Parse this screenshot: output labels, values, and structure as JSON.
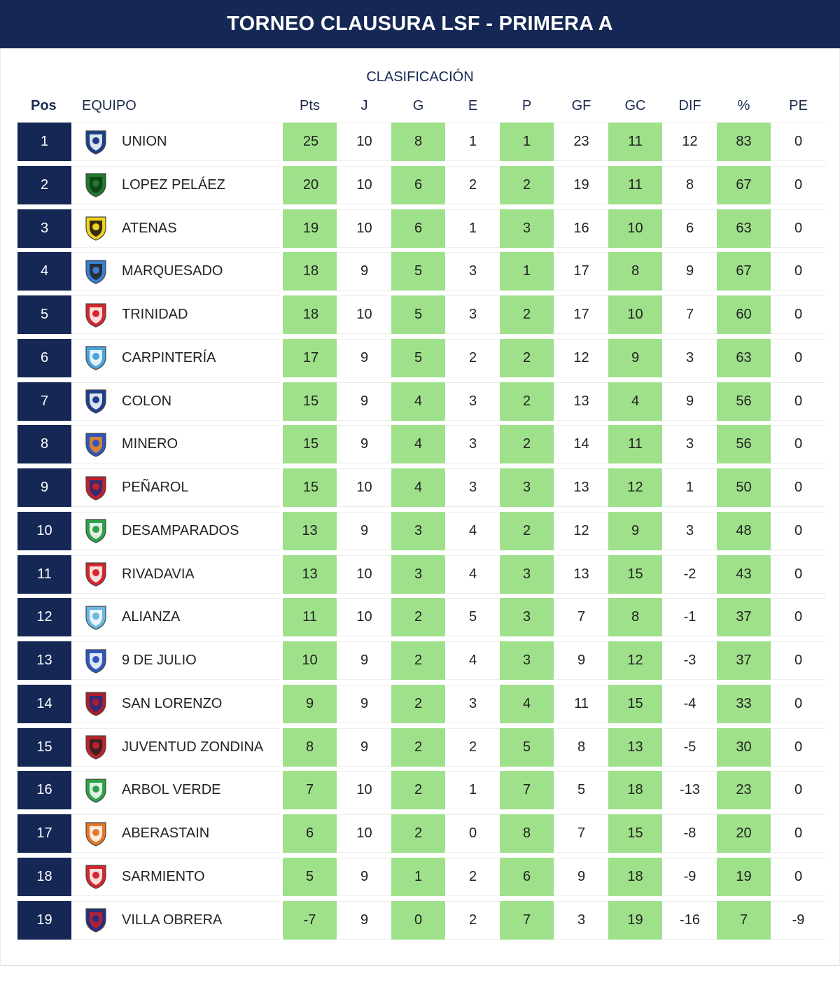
{
  "title": "TORNEO CLAUSURA LSF - PRIMERA A",
  "subtitle": "CLASIFICACIÓN",
  "headers": {
    "pos": "Pos",
    "team": "EQUIPO",
    "pts": "Pts",
    "j": "J",
    "g": "G",
    "e": "E",
    "p": "P",
    "gf": "GF",
    "gc": "GC",
    "dif": "DIF",
    "pct": "%",
    "pe": "PE"
  },
  "colors": {
    "navy": "#152755",
    "green_cell": "#9fe18a",
    "zone_marker": "#4aad52"
  },
  "rows": [
    {
      "pos": "1",
      "team": "UNION",
      "pts": "25",
      "j": "10",
      "g": "8",
      "e": "1",
      "p": "1",
      "gf": "23",
      "gc": "11",
      "dif": "12",
      "pct": "83",
      "pe": "0",
      "icon": "union-crest-icon",
      "c1": "#1b3f8f",
      "c2": "#ffffff"
    },
    {
      "pos": "2",
      "team": "LOPEZ PELÁEZ",
      "pts": "20",
      "j": "10",
      "g": "6",
      "e": "2",
      "p": "2",
      "gf": "19",
      "gc": "11",
      "dif": "8",
      "pct": "67",
      "pe": "0",
      "icon": "lopez-pelaez-crest-icon",
      "c1": "#1d7a2e",
      "c2": "#0c3d14"
    },
    {
      "pos": "3",
      "team": "ATENAS",
      "pts": "19",
      "j": "10",
      "g": "6",
      "e": "1",
      "p": "3",
      "gf": "16",
      "gc": "10",
      "dif": "6",
      "pct": "63",
      "pe": "0",
      "icon": "atenas-crest-icon",
      "c1": "#f2d21b",
      "c2": "#111111"
    },
    {
      "pos": "4",
      "team": "MARQUESADO",
      "pts": "18",
      "j": "9",
      "g": "5",
      "e": "3",
      "p": "1",
      "gf": "17",
      "gc": "8",
      "dif": "9",
      "pct": "67",
      "pe": "0",
      "icon": "marquesado-crest-icon",
      "c1": "#3a7fd0",
      "c2": "#222222"
    },
    {
      "pos": "5",
      "team": "TRINIDAD",
      "pts": "18",
      "j": "10",
      "g": "5",
      "e": "3",
      "p": "2",
      "gf": "17",
      "gc": "10",
      "dif": "7",
      "pct": "60",
      "pe": "0",
      "icon": "trinidad-crest-icon",
      "c1": "#d8262a",
      "c2": "#ffffff"
    },
    {
      "pos": "6",
      "team": "CARPINTERÍA",
      "pts": "17",
      "j": "9",
      "g": "5",
      "e": "2",
      "p": "2",
      "gf": "12",
      "gc": "9",
      "dif": "3",
      "pct": "63",
      "pe": "0",
      "icon": "carpinteria-crest-icon",
      "c1": "#4aa3df",
      "c2": "#ffffff"
    },
    {
      "pos": "7",
      "team": "COLON",
      "pts": "15",
      "j": "9",
      "g": "4",
      "e": "3",
      "p": "2",
      "gf": "13",
      "gc": "4",
      "dif": "9",
      "pct": "56",
      "pe": "0",
      "icon": "colon-crest-icon",
      "c1": "#1b3f8f",
      "c2": "#ffffff"
    },
    {
      "pos": "8",
      "team": "MINERO",
      "pts": "15",
      "j": "9",
      "g": "4",
      "e": "3",
      "p": "2",
      "gf": "14",
      "gc": "11",
      "dif": "3",
      "pct": "56",
      "pe": "0",
      "icon": "minero-crest-icon",
      "c1": "#2f56c0",
      "c2": "#f28a1c"
    },
    {
      "pos": "9",
      "team": "PEÑAROL",
      "pts": "15",
      "j": "10",
      "g": "4",
      "e": "3",
      "p": "3",
      "gf": "13",
      "gc": "12",
      "dif": "1",
      "pct": "50",
      "pe": "0",
      "icon": "penarol-crest-icon",
      "c1": "#c3202a",
      "c2": "#1b2f80"
    },
    {
      "pos": "10",
      "team": "DESAMPARADOS",
      "pts": "13",
      "j": "9",
      "g": "3",
      "e": "4",
      "p": "2",
      "gf": "12",
      "gc": "9",
      "dif": "3",
      "pct": "48",
      "pe": "0",
      "icon": "desamparados-crest-icon",
      "c1": "#2ea24a",
      "c2": "#ffffff"
    },
    {
      "pos": "11",
      "team": "RIVADAVIA",
      "pts": "13",
      "j": "10",
      "g": "3",
      "e": "4",
      "p": "3",
      "gf": "13",
      "gc": "15",
      "dif": "-2",
      "pct": "43",
      "pe": "0",
      "icon": "rivadavia-crest-icon",
      "c1": "#d8262a",
      "c2": "#ffffff"
    },
    {
      "pos": "12",
      "team": "ALIANZA",
      "pts": "11",
      "j": "10",
      "g": "2",
      "e": "5",
      "p": "3",
      "gf": "7",
      "gc": "8",
      "dif": "-1",
      "pct": "37",
      "pe": "0",
      "icon": "alianza-crest-icon",
      "c1": "#6ab7e6",
      "c2": "#ffffff"
    },
    {
      "pos": "13",
      "team": "9 DE JULIO",
      "pts": "10",
      "j": "9",
      "g": "2",
      "e": "4",
      "p": "3",
      "gf": "9",
      "gc": "12",
      "dif": "-3",
      "pct": "37",
      "pe": "0",
      "icon": "nueve-de-julio-crest-icon",
      "c1": "#2f56c0",
      "c2": "#ffffff"
    },
    {
      "pos": "14",
      "team": "SAN LORENZO",
      "pts": "9",
      "j": "9",
      "g": "2",
      "e": "3",
      "p": "4",
      "gf": "11",
      "gc": "15",
      "dif": "-4",
      "pct": "33",
      "pe": "0",
      "icon": "san-lorenzo-crest-icon",
      "c1": "#b01c2a",
      "c2": "#1b2f80"
    },
    {
      "pos": "15",
      "team": "JUVENTUD ZONDINA",
      "pts": "8",
      "j": "9",
      "g": "2",
      "e": "2",
      "p": "5",
      "gf": "8",
      "gc": "13",
      "dif": "-5",
      "pct": "30",
      "pe": "0",
      "icon": "juventud-zondina-crest-icon",
      "c1": "#c3202a",
      "c2": "#222222"
    },
    {
      "pos": "16",
      "team": "ARBOL VERDE",
      "pts": "7",
      "j": "10",
      "g": "2",
      "e": "1",
      "p": "7",
      "gf": "5",
      "gc": "18",
      "dif": "-13",
      "pct": "23",
      "pe": "0",
      "icon": "arbol-verde-crest-icon",
      "c1": "#2ea24a",
      "c2": "#ffffff"
    },
    {
      "pos": "17",
      "team": "ABERASTAIN",
      "pts": "6",
      "j": "10",
      "g": "2",
      "e": "0",
      "p": "8",
      "gf": "7",
      "gc": "15",
      "dif": "-8",
      "pct": "20",
      "pe": "0",
      "icon": "aberastain-crest-icon",
      "c1": "#e8772a",
      "c2": "#ffffff"
    },
    {
      "pos": "18",
      "team": "SARMIENTO",
      "pts": "5",
      "j": "9",
      "g": "1",
      "e": "2",
      "p": "6",
      "gf": "9",
      "gc": "18",
      "dif": "-9",
      "pct": "19",
      "pe": "0",
      "icon": "sarmiento-crest-icon",
      "c1": "#d8262a",
      "c2": "#ffffff"
    },
    {
      "pos": "19",
      "team": "VILLA OBRERA",
      "pts": "-7",
      "j": "9",
      "g": "0",
      "e": "2",
      "p": "7",
      "gf": "3",
      "gc": "19",
      "dif": "-16",
      "pct": "7",
      "pe": "-9",
      "icon": "villa-obrera-crest-icon",
      "c1": "#2b2f7a",
      "c2": "#c3202a"
    }
  ]
}
